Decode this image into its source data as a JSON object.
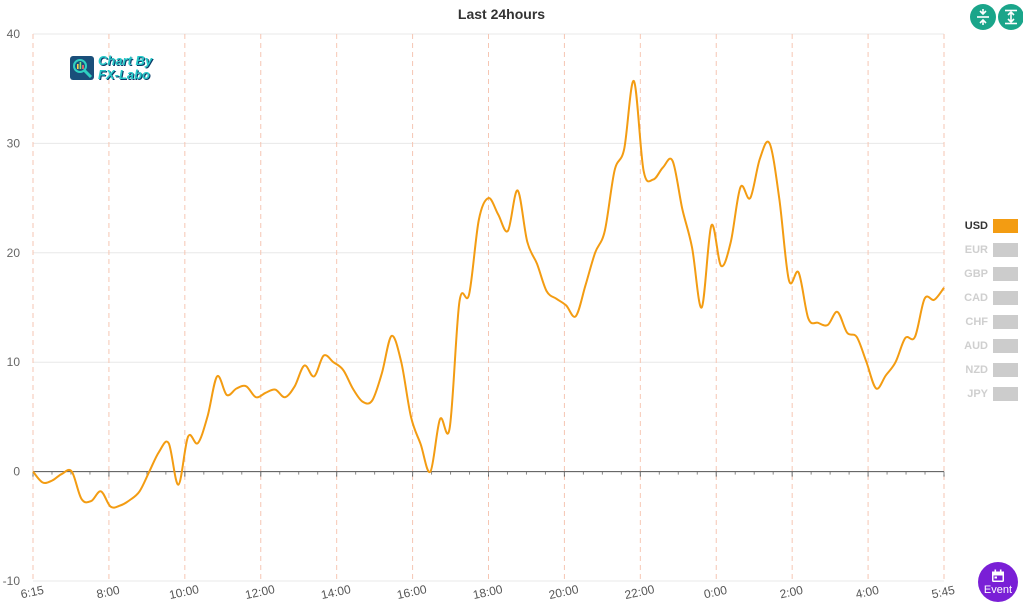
{
  "chart_data": {
    "type": "line",
    "title": "Last 24hours",
    "xlabel": "",
    "ylabel": "",
    "ylim": [
      -10,
      40
    ],
    "yticks": [
      -10,
      0,
      10,
      20,
      30,
      40
    ],
    "x_tick_labels": [
      "6:15",
      "8:00",
      "10:00",
      "12:00",
      "14:00",
      "16:00",
      "18:00",
      "20:00",
      "22:00",
      "0:00",
      "2:00",
      "4:00",
      "5:45"
    ],
    "grid": true,
    "legend_position": "right",
    "series": [
      {
        "name": "USD",
        "color": "#f39c12",
        "points": [
          [
            0,
            0
          ],
          [
            1,
            -1
          ],
          [
            2,
            -0.8
          ],
          [
            3,
            -0.2
          ],
          [
            4,
            0
          ],
          [
            5,
            -2.5
          ],
          [
            6,
            -2.7
          ],
          [
            7,
            -1.8
          ],
          [
            8,
            -3.2
          ],
          [
            9,
            -3.1
          ],
          [
            10,
            -2.6
          ],
          [
            11,
            -1.8
          ],
          [
            12,
            0
          ],
          [
            13,
            1.8
          ],
          [
            14,
            2.6
          ],
          [
            15,
            -1.2
          ],
          [
            16,
            3.2
          ],
          [
            17,
            2.6
          ],
          [
            18,
            5
          ],
          [
            19,
            8.7
          ],
          [
            20,
            7
          ],
          [
            21,
            7.6
          ],
          [
            22,
            7.8
          ],
          [
            23,
            6.8
          ],
          [
            24,
            7.2
          ],
          [
            25,
            7.5
          ],
          [
            26,
            6.8
          ],
          [
            27,
            7.8
          ],
          [
            28,
            9.7
          ],
          [
            29,
            8.7
          ],
          [
            30,
            10.6
          ],
          [
            31,
            10
          ],
          [
            32,
            9.3
          ],
          [
            33,
            7.6
          ],
          [
            34,
            6.4
          ],
          [
            35,
            6.5
          ],
          [
            36,
            9
          ],
          [
            37,
            12.4
          ],
          [
            38,
            10
          ],
          [
            39,
            5
          ],
          [
            40,
            2.5
          ],
          [
            41,
            0
          ],
          [
            42,
            4.8
          ],
          [
            43,
            4
          ],
          [
            44,
            15.5
          ],
          [
            45,
            16.2
          ],
          [
            46,
            23
          ],
          [
            47,
            25
          ],
          [
            48,
            23.5
          ],
          [
            49,
            22
          ],
          [
            50,
            25.7
          ],
          [
            51,
            21
          ],
          [
            52,
            19
          ],
          [
            53,
            16.5
          ],
          [
            54,
            15.8
          ],
          [
            55,
            15.2
          ],
          [
            56,
            14.2
          ],
          [
            57,
            17
          ],
          [
            58,
            20
          ],
          [
            59,
            22
          ],
          [
            60,
            27.5
          ],
          [
            61,
            29.5
          ],
          [
            62,
            35.7
          ],
          [
            63,
            27.5
          ],
          [
            64,
            26.7
          ],
          [
            65,
            27.8
          ],
          [
            66,
            28.4
          ],
          [
            67,
            24
          ],
          [
            68,
            20.5
          ],
          [
            69,
            15
          ],
          [
            70,
            22.5
          ],
          [
            71,
            18.8
          ],
          [
            72,
            21
          ],
          [
            73,
            26
          ],
          [
            74,
            25
          ],
          [
            75,
            28.6
          ],
          [
            76,
            30
          ],
          [
            77,
            25
          ],
          [
            78,
            17.5
          ],
          [
            79,
            18.2
          ],
          [
            80,
            14
          ],
          [
            81,
            13.6
          ],
          [
            82,
            13.4
          ],
          [
            83,
            14.6
          ],
          [
            84,
            12.7
          ],
          [
            85,
            12.3
          ],
          [
            86,
            10
          ],
          [
            87,
            7.6
          ],
          [
            88,
            8.8
          ],
          [
            89,
            10
          ],
          [
            90,
            12.2
          ],
          [
            91,
            12.3
          ],
          [
            92,
            15.8
          ],
          [
            93,
            15.7
          ],
          [
            94,
            16.8
          ]
        ]
      },
      {
        "name": "EUR"
      },
      {
        "name": "GBP"
      },
      {
        "name": "CAD"
      },
      {
        "name": "CHF"
      },
      {
        "name": "AUD"
      },
      {
        "name": "NZD"
      },
      {
        "name": "JPY"
      }
    ]
  },
  "logo": {
    "line1": "Chart By",
    "line2": "FX-Labo"
  },
  "toolbar": {
    "compress_icon": "compress-vertical-icon",
    "expand_icon": "expand-vertical-icon"
  },
  "event_button": {
    "label": "Event",
    "icon": "calendar-icon"
  },
  "colors": {
    "active": "#f39c12",
    "inactive": "#cccccc",
    "event_button": "#7a1fd6",
    "toolbar_button": "#1aa58a"
  }
}
